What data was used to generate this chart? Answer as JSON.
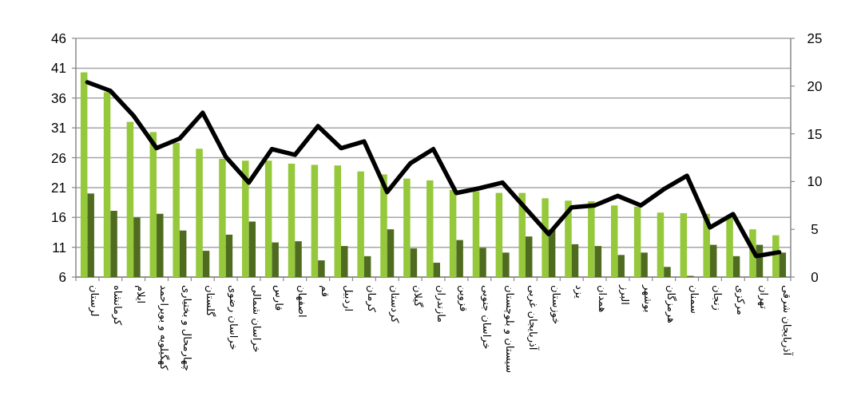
{
  "chart_data": {
    "type": "bar",
    "categories": [
      "لرستان",
      "کرمانشاه",
      "ایلام",
      "کهگیلویه و بویراحمد",
      "چهارمحال و بختیاری",
      "گلستان",
      "خراسان رضوی",
      "خراسان شمالی",
      "فارس",
      "اصفهان",
      "قم",
      "اردبیل",
      "کرمان",
      "کردستان",
      "گیلان",
      "مازندران",
      "قزوین",
      "خراسان جنوبی",
      "سیستان و بلوچستان",
      "آذربایجان غربی",
      "خوزستان",
      "یزد",
      "همدان",
      "البرز",
      "بوشهر",
      "هرمزگان",
      "سمنان",
      "زنجان",
      "مرکزی",
      "تهران",
      "آذربایجان شرقی"
    ],
    "series": [
      {
        "color": "#95c83a",
        "values": [
          40.3,
          37.0,
          32.0,
          30.3,
          28.5,
          27.5,
          25.8,
          25.5,
          25.5,
          25.0,
          24.8,
          24.7,
          23.7,
          23.2,
          22.5,
          22.2,
          20.6,
          20.4,
          20.1,
          20.1,
          19.2,
          18.8,
          18.7,
          18.0,
          17.8,
          16.8,
          16.7,
          16.6,
          15.9,
          14.0,
          13.0
        ]
      },
      {
        "color": "#4f6b1f",
        "values": [
          20.0,
          17.1,
          16.0,
          16.6,
          13.8,
          10.4,
          13.1,
          15.3,
          11.8,
          12.0,
          8.8,
          11.2,
          9.5,
          14.0,
          10.8,
          8.4,
          12.2,
          10.9,
          10.1,
          12.8,
          14.0,
          11.5,
          11.2,
          9.7,
          10.1,
          7.7,
          6.2,
          11.4,
          9.5,
          11.4,
          10.1
        ]
      },
      {
        "type": "line",
        "axis": "y2",
        "color": "#000000",
        "values": [
          20.4,
          19.5,
          16.9,
          13.5,
          14.5,
          17.2,
          12.6,
          9.9,
          13.4,
          12.8,
          15.8,
          13.5,
          14.2,
          8.9,
          11.9,
          13.4,
          8.8,
          9.3,
          9.9,
          7.2,
          4.5,
          7.3,
          7.5,
          8.5,
          7.5,
          9.2,
          10.6,
          5.2,
          6.6,
          2.2,
          2.6
        ]
      }
    ],
    "ylim": [
      6,
      46
    ],
    "yticks": [
      6,
      11,
      16,
      21,
      26,
      31,
      36,
      41,
      46
    ],
    "y2lim": [
      0,
      25
    ],
    "y2ticks": [
      0,
      5,
      10,
      15,
      20,
      25
    ],
    "grid": "y"
  }
}
